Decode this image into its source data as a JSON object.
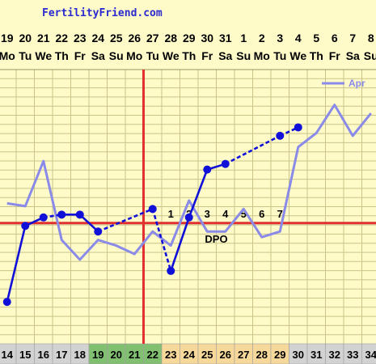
{
  "watermark": "FertilityFriend.com",
  "colors": {
    "background": "#fefbc8",
    "grid": "#c9c48a",
    "current_cycle": "#1010d8",
    "comparison": "#8a8ae8",
    "coverline": "#e03030",
    "ovulation_line": "#e03030",
    "cd_default": "#d2d2d2",
    "cd_fertile": "#80c070",
    "cd_luteal": "#f6d89a"
  },
  "chart_data": {
    "type": "line",
    "dates": [
      "19",
      "20",
      "21",
      "22",
      "23",
      "24",
      "25",
      "26",
      "27",
      "28",
      "29",
      "30",
      "31",
      "1",
      "2",
      "3",
      "4",
      "5",
      "6",
      "7",
      "8"
    ],
    "weekdays": [
      "Mo",
      "Tu",
      "We",
      "Th",
      "Fr",
      "Sa",
      "Su",
      "Mo",
      "Tu",
      "We",
      "Th",
      "Fr",
      "Sa",
      "Su",
      "Mo",
      "Tu",
      "We",
      "Th",
      "Fr",
      "Sa",
      "Su"
    ],
    "cycle_days": [
      "14",
      "15",
      "16",
      "17",
      "18",
      "19",
      "20",
      "21",
      "22",
      "23",
      "24",
      "25",
      "26",
      "27",
      "28",
      "29",
      "30",
      "31",
      "32",
      "33",
      "34"
    ],
    "cycle_day_shading": [
      "default",
      "default",
      "default",
      "default",
      "default",
      "fertile",
      "fertile",
      "fertile",
      "fertile",
      "luteal",
      "luteal",
      "luteal",
      "luteal",
      "luteal",
      "luteal",
      "luteal",
      "default",
      "default",
      "default",
      "default",
      "default"
    ],
    "ylim": [
      0,
      1
    ],
    "series": [
      {
        "values": [
          0.1,
          0.37,
          0.4,
          0.41,
          0.41,
          0.35,
          null,
          null,
          0.43,
          0.21,
          0.4,
          0.57,
          0.59,
          null,
          null,
          0.69,
          0.72,
          null,
          null,
          null,
          null
        ],
        "dashed_after": [
          2,
          5,
          6,
          7,
          8,
          12,
          13,
          14,
          15
        ]
      },
      {
        "name": "Apr",
        "values": [
          0.45,
          0.44,
          0.6,
          0.32,
          0.25,
          0.32,
          0.3,
          0.27,
          0.35,
          0.3,
          0.46,
          0.35,
          0.35,
          0.43,
          0.33,
          0.35,
          0.65,
          0.7,
          0.8,
          0.69,
          0.77
        ]
      }
    ],
    "coverline": 0.38,
    "ovulation_index": 8,
    "dpo_labels": [
      "1",
      "2",
      "3",
      "4",
      "5",
      "6",
      "7"
    ],
    "dpo_text": "DPO",
    "legend": "top-right"
  }
}
